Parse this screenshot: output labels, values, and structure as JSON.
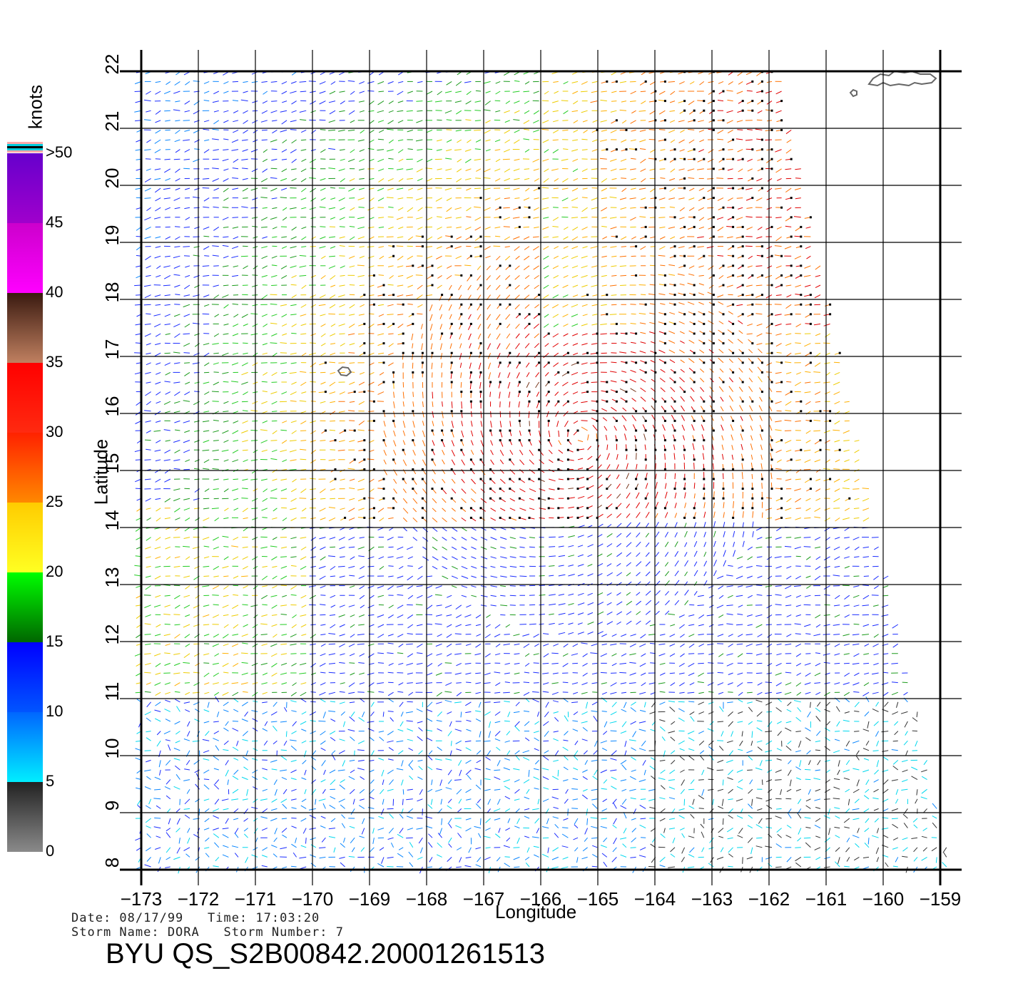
{
  "map": {
    "xlabel": "Longitude",
    "ylabel": "Latitude",
    "lon_range": [
      -173,
      -159
    ],
    "lat_range": [
      8,
      22
    ],
    "lon_ticks": [
      "−173",
      "−172",
      "−171",
      "−170",
      "−169",
      "−168",
      "−167",
      "−166",
      "−165",
      "−164",
      "−163",
      "−162",
      "−161",
      "−160",
      "−159"
    ],
    "lat_ticks": [
      "8",
      "9",
      "10",
      "11",
      "12",
      "13",
      "14",
      "15",
      "16",
      "17",
      "18",
      "19",
      "20",
      "21",
      "22"
    ],
    "grid": true,
    "storm_center": {
      "lon": -165.3,
      "lat": 15.6
    },
    "swath_edge_points": [
      {
        "lon": -161.8,
        "lat": 22
      },
      {
        "lon": -158.8,
        "lat": 8
      }
    ]
  },
  "colorbar": {
    "unit": "knots",
    "labels": [
      {
        "text": ">50",
        "value": 50
      },
      {
        "text": "45",
        "value": 45
      },
      {
        "text": "40",
        "value": 40
      },
      {
        "text": "35",
        "value": 35
      },
      {
        "text": "30",
        "value": 30
      },
      {
        "text": "25",
        "value": 25
      },
      {
        "text": "20",
        "value": 20
      },
      {
        "text": "15",
        "value": 15
      },
      {
        "text": "10",
        "value": 10
      },
      {
        "text": "5",
        "value": 5
      },
      {
        "text": "0",
        "value": 0
      }
    ],
    "bands": [
      {
        "from": 0,
        "to": 5,
        "top": "#222222",
        "bottom": "#8a8a8a"
      },
      {
        "from": 5,
        "to": 10,
        "top": "#0066ff",
        "bottom": "#00eeff"
      },
      {
        "from": 10,
        "to": 15,
        "top": "#0000ff",
        "bottom": "#0055ff"
      },
      {
        "from": 15,
        "to": 20,
        "top": "#00ff00",
        "bottom": "#006600"
      },
      {
        "from": 20,
        "to": 25,
        "top": "#ffcc00",
        "bottom": "#ffff22"
      },
      {
        "from": 25,
        "to": 30,
        "top": "#ff2200",
        "bottom": "#ff8800"
      },
      {
        "from": 30,
        "to": 35,
        "top": "#ff0000",
        "bottom": "#ff2a10"
      },
      {
        "from": 35,
        "to": 40,
        "top": "#3a1a10",
        "bottom": "#c08060"
      },
      {
        "from": 40,
        "to": 45,
        "top": "#cc00cc",
        "bottom": "#ff00ff"
      },
      {
        "from": 45,
        "to": 50,
        "top": "#6600cc",
        "bottom": "#a000cc"
      }
    ],
    "cap_colors": [
      "#ffaaaa",
      "#00ccdd",
      "#000000",
      "#00ccdd",
      "#ffaaaa"
    ]
  },
  "info": {
    "line1": "Date: 08/17/99   Time: 17:03:20",
    "line2": "Storm Name: DORA   Storm Number: 7",
    "title": "BYU QS_S2B00842.20001261513"
  },
  "colors": {
    "grid": "#000000",
    "coast": "#666666"
  }
}
